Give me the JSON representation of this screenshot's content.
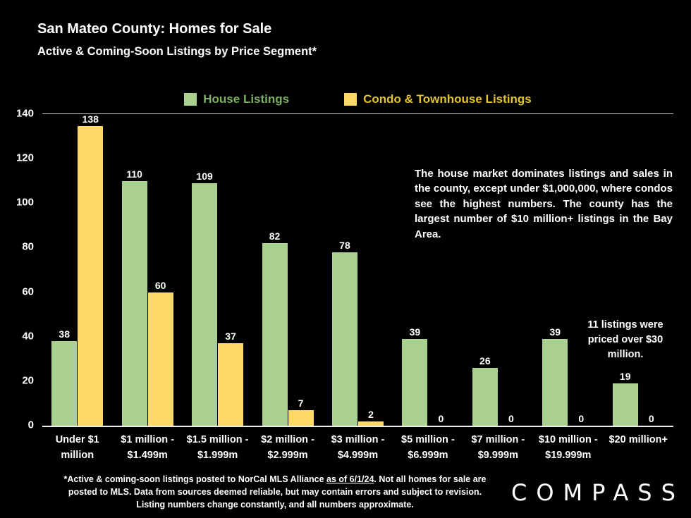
{
  "header": {
    "title": "San Mateo County: Homes for Sale",
    "subtitle": "Active & Coming-Soon Listings by Price Segment*"
  },
  "chart_data": {
    "type": "bar",
    "categories": [
      "Under $1\nmillion",
      "$1 million -\n$1.499m",
      "$1.5 million -\n$1.999m",
      "$2 million -\n$2.999m",
      "$3 million -\n$4.999m",
      "$5 million -\n$6.999m",
      "$7 million -\n$9.999m",
      "$10 million -\n$19.999m",
      "$20 million+"
    ],
    "series": [
      {
        "name": "House Listings",
        "color": "#a9d08e",
        "label_color": "#7cb062",
        "values": [
          38,
          110,
          109,
          82,
          78,
          39,
          26,
          39,
          19
        ]
      },
      {
        "name": "Condo & Townhouse Listings",
        "color": "#ffd966",
        "label_color": "#e3c430",
        "values": [
          138,
          60,
          37,
          7,
          2,
          0,
          0,
          0,
          0
        ]
      }
    ],
    "title": "San Mateo County: Homes for Sale",
    "subtitle": "Active & Coming-Soon Listings by Price Segment*",
    "xlabel": "",
    "ylabel": "",
    "ylim": [
      0,
      140
    ],
    "yticks": [
      0,
      20,
      40,
      60,
      80,
      100,
      120,
      140
    ],
    "grid": false,
    "legend_position": "top",
    "value_labels": true
  },
  "annotations": {
    "main": "The house market dominates listings and sales in the county, except under $1,000,000, where condos see the highest numbers. The county has the largest number of $10 million+ listings in the Bay Area.",
    "secondary": "11 listings were priced over $30 million."
  },
  "footnote": {
    "part1": "*Active & coming-soon listings posted to NorCal MLS Alliance ",
    "underlined": "as of 6/1/24",
    "part2": ". Not all homes for sale are posted to MLS. Data from sources deemed reliable, but may contain errors and subject to revision. Listing numbers change constantly, and all numbers approximate."
  },
  "logo": {
    "text": "COMPASS"
  }
}
